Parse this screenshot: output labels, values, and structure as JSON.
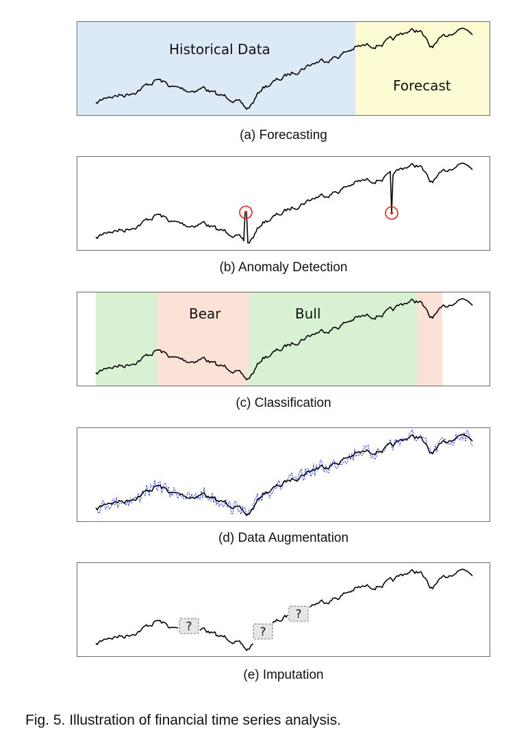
{
  "panels": [
    {
      "id": "forecasting",
      "caption": "(a) Forecasting",
      "labels": {
        "historical": "Historical Data",
        "forecast": "Forecast"
      }
    },
    {
      "id": "anomaly",
      "caption": "(b) Anomaly Detection"
    },
    {
      "id": "classification",
      "caption": "(c) Classification",
      "labels": {
        "bear": "Bear",
        "bull": "Bull"
      }
    },
    {
      "id": "augmentation",
      "caption": "(d) Data Augmentation"
    },
    {
      "id": "imputation",
      "caption": "(e) Imputation",
      "labels": {
        "missing": "?"
      }
    }
  ],
  "figure_caption": "Fig. 5. Illustration of financial time series analysis.",
  "colors": {
    "historical_bg": "#dce9f6",
    "forecast_bg": "#fdfbd4",
    "bear_bg": "#fbe1d6",
    "bull_bg": "#d8f1d3",
    "series": "#000000",
    "augmented": "#1f2fd8",
    "anomaly_marker": "#e0201c",
    "missing_box": "#e6e6e6"
  }
}
